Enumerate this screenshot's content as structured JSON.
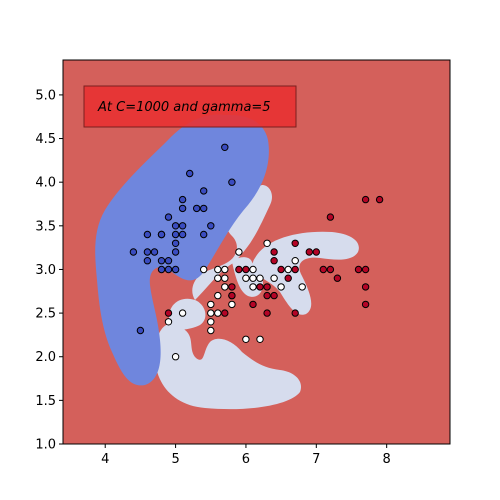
{
  "chart_data": {
    "type": "scatter",
    "title": "",
    "xlabel": "",
    "ylabel": "",
    "xlim": [
      3.4,
      8.9
    ],
    "ylim": [
      1.0,
      5.4
    ],
    "x_ticks": [
      4,
      5,
      6,
      7,
      8
    ],
    "y_ticks": [
      1.0,
      1.5,
      2.0,
      2.5,
      3.0,
      3.5,
      4.0,
      4.5,
      5.0
    ],
    "grid": false,
    "legend": "none",
    "annotation": {
      "text": "At C=1000 and gamma=5",
      "box_color": "#e83232"
    },
    "decision_regions": {
      "background_class": "red",
      "colors": {
        "blue": "#6f86dd",
        "white": "#d6dced",
        "red": "#d4605b"
      }
    },
    "series": [
      {
        "class": "blue",
        "color": "#3a4cc0",
        "points": [
          [
            4.4,
            3.2
          ],
          [
            4.5,
            2.3
          ],
          [
            4.6,
            3.4
          ],
          [
            4.6,
            3.2
          ],
          [
            4.6,
            3.1
          ],
          [
            4.7,
            3.2
          ],
          [
            4.8,
            3.4
          ],
          [
            4.8,
            3.4
          ],
          [
            4.8,
            3.1
          ],
          [
            4.8,
            3.0
          ],
          [
            4.9,
            3.6
          ],
          [
            4.9,
            3.1
          ],
          [
            4.9,
            3.0
          ],
          [
            5.0,
            3.5
          ],
          [
            5.0,
            3.4
          ],
          [
            5.0,
            3.3
          ],
          [
            5.0,
            3.2
          ],
          [
            5.0,
            3.0
          ],
          [
            5.1,
            3.8
          ],
          [
            5.1,
            3.7
          ],
          [
            5.1,
            3.5
          ],
          [
            5.1,
            3.4
          ],
          [
            5.2,
            4.1
          ],
          [
            5.3,
            3.7
          ],
          [
            5.4,
            3.9
          ],
          [
            5.4,
            3.7
          ],
          [
            5.4,
            3.4
          ],
          [
            5.5,
            3.5
          ],
          [
            5.7,
            4.4
          ],
          [
            5.8,
            4.0
          ]
        ]
      },
      {
        "class": "white",
        "color": "#ffffff",
        "points": [
          [
            4.9,
            2.4
          ],
          [
            5.0,
            2.0
          ],
          [
            5.1,
            2.5
          ],
          [
            5.4,
            3.0
          ],
          [
            5.5,
            2.6
          ],
          [
            5.5,
            2.5
          ],
          [
            5.5,
            2.4
          ],
          [
            5.5,
            2.3
          ],
          [
            5.6,
            3.0
          ],
          [
            5.6,
            2.9
          ],
          [
            5.6,
            2.7
          ],
          [
            5.6,
            2.5
          ],
          [
            5.7,
            3.0
          ],
          [
            5.7,
            2.9
          ],
          [
            5.7,
            2.8
          ],
          [
            5.8,
            2.7
          ],
          [
            5.8,
            2.6
          ],
          [
            5.9,
            3.2
          ],
          [
            6.0,
            2.9
          ],
          [
            6.0,
            2.2
          ],
          [
            6.1,
            3.0
          ],
          [
            6.1,
            2.9
          ],
          [
            6.1,
            2.8
          ],
          [
            6.2,
            2.9
          ],
          [
            6.2,
            2.2
          ],
          [
            6.3,
            3.3
          ],
          [
            6.4,
            2.9
          ],
          [
            6.5,
            2.8
          ],
          [
            6.6,
            3.0
          ],
          [
            6.7,
            3.1
          ],
          [
            6.8,
            2.8
          ]
        ]
      },
      {
        "class": "red",
        "color": "#b40426",
        "points": [
          [
            4.9,
            2.5
          ],
          [
            5.7,
            2.5
          ],
          [
            5.8,
            2.8
          ],
          [
            5.8,
            2.7
          ],
          [
            5.9,
            3.0
          ],
          [
            6.0,
            3.0
          ],
          [
            6.1,
            2.6
          ],
          [
            6.2,
            2.8
          ],
          [
            6.3,
            2.8
          ],
          [
            6.3,
            2.7
          ],
          [
            6.3,
            2.5
          ],
          [
            6.4,
            3.2
          ],
          [
            6.4,
            3.1
          ],
          [
            6.4,
            2.7
          ],
          [
            6.5,
            3.0
          ],
          [
            6.6,
            2.9
          ],
          [
            6.7,
            3.3
          ],
          [
            6.7,
            3.0
          ],
          [
            6.7,
            2.5
          ],
          [
            6.9,
            3.2
          ],
          [
            7.0,
            3.2
          ],
          [
            7.1,
            3.0
          ],
          [
            7.2,
            3.6
          ],
          [
            7.2,
            3.0
          ],
          [
            7.3,
            2.9
          ],
          [
            7.6,
            3.0
          ],
          [
            7.7,
            3.8
          ],
          [
            7.7,
            3.0
          ],
          [
            7.7,
            2.8
          ],
          [
            7.7,
            2.6
          ],
          [
            7.9,
            3.8
          ]
        ]
      }
    ]
  }
}
